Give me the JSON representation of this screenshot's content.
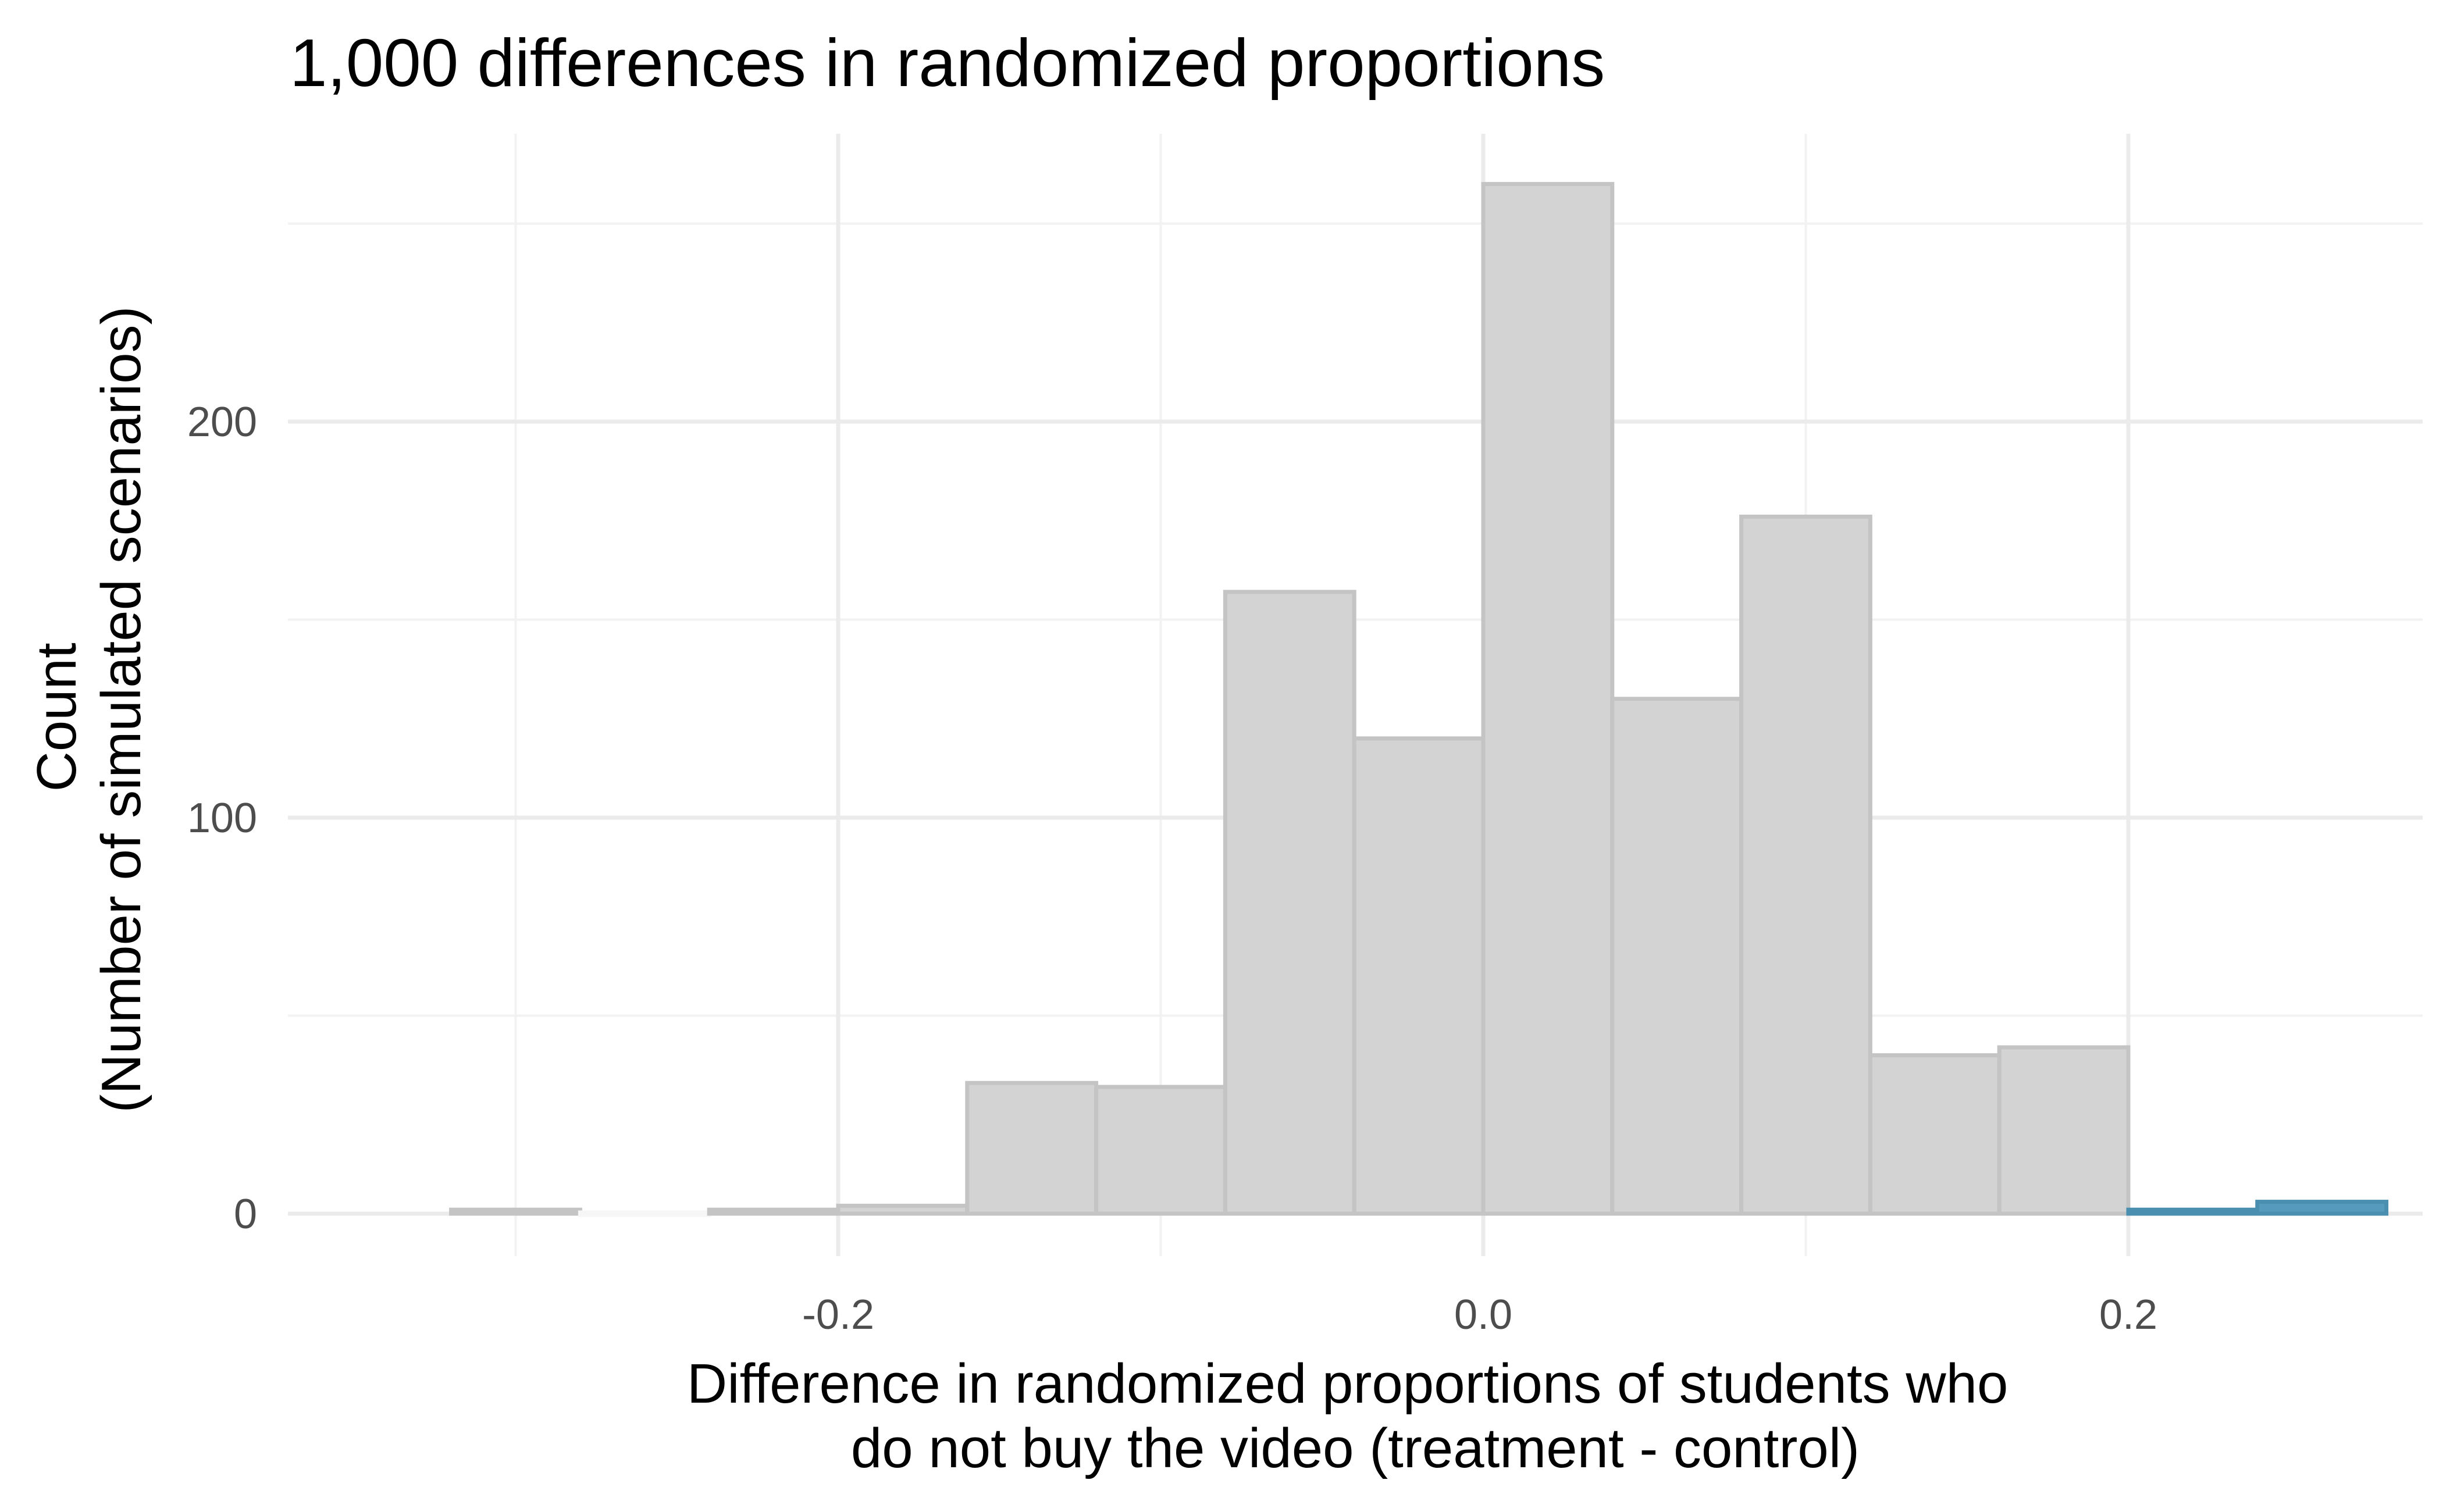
{
  "chart_data": {
    "type": "bar",
    "title": "1,000 differences in randomized proportions",
    "xlabel_lines": [
      "Difference in randomized proportions of students who",
      "do not buy the video (treatment - control)"
    ],
    "ylabel_lines": [
      "Count",
      "(Number of simulated scenarios)"
    ],
    "x_ticks": [
      {
        "value": -0.2,
        "label": "-0.2"
      },
      {
        "value": 0.0,
        "label": "0.0"
      },
      {
        "value": 0.2,
        "label": "0.2"
      }
    ],
    "y_ticks": [
      {
        "value": 0,
        "label": "0"
      },
      {
        "value": 100,
        "label": "100"
      },
      {
        "value": 200,
        "label": "200"
      }
    ],
    "xlim": [
      -0.3292,
      0.3292
    ],
    "ylim": [
      0,
      260
    ],
    "grid": true,
    "bin_width": 0.04,
    "bins": [
      {
        "center": -0.3,
        "count": 1,
        "highlight": false
      },
      {
        "center": -0.26,
        "count": 0,
        "highlight": false
      },
      {
        "center": -0.22,
        "count": 1,
        "highlight": false
      },
      {
        "center": -0.18,
        "count": 2,
        "highlight": false
      },
      {
        "center": -0.14,
        "count": 33,
        "highlight": false
      },
      {
        "center": -0.1,
        "count": 32,
        "highlight": false
      },
      {
        "center": -0.06,
        "count": 157,
        "highlight": false
      },
      {
        "center": -0.02,
        "count": 120,
        "highlight": false
      },
      {
        "center": 0.02,
        "count": 260,
        "highlight": false
      },
      {
        "center": 0.06,
        "count": 130,
        "highlight": false
      },
      {
        "center": 0.1,
        "count": 176,
        "highlight": false
      },
      {
        "center": 0.14,
        "count": 40,
        "highlight": false
      },
      {
        "center": 0.18,
        "count": 42,
        "highlight": false
      },
      {
        "center": 0.22,
        "count": 1,
        "highlight": true
      },
      {
        "center": 0.26,
        "count": 3,
        "highlight": true
      }
    ],
    "colors": {
      "bar_fill": "#d3d3d3",
      "bar_stroke": "#c4c4c4",
      "highlight_fill": "#569bbd",
      "highlight_stroke": "#4a8fb0",
      "grid_major": "#ebebeb",
      "grid_minor": "#f2f2f2"
    }
  }
}
